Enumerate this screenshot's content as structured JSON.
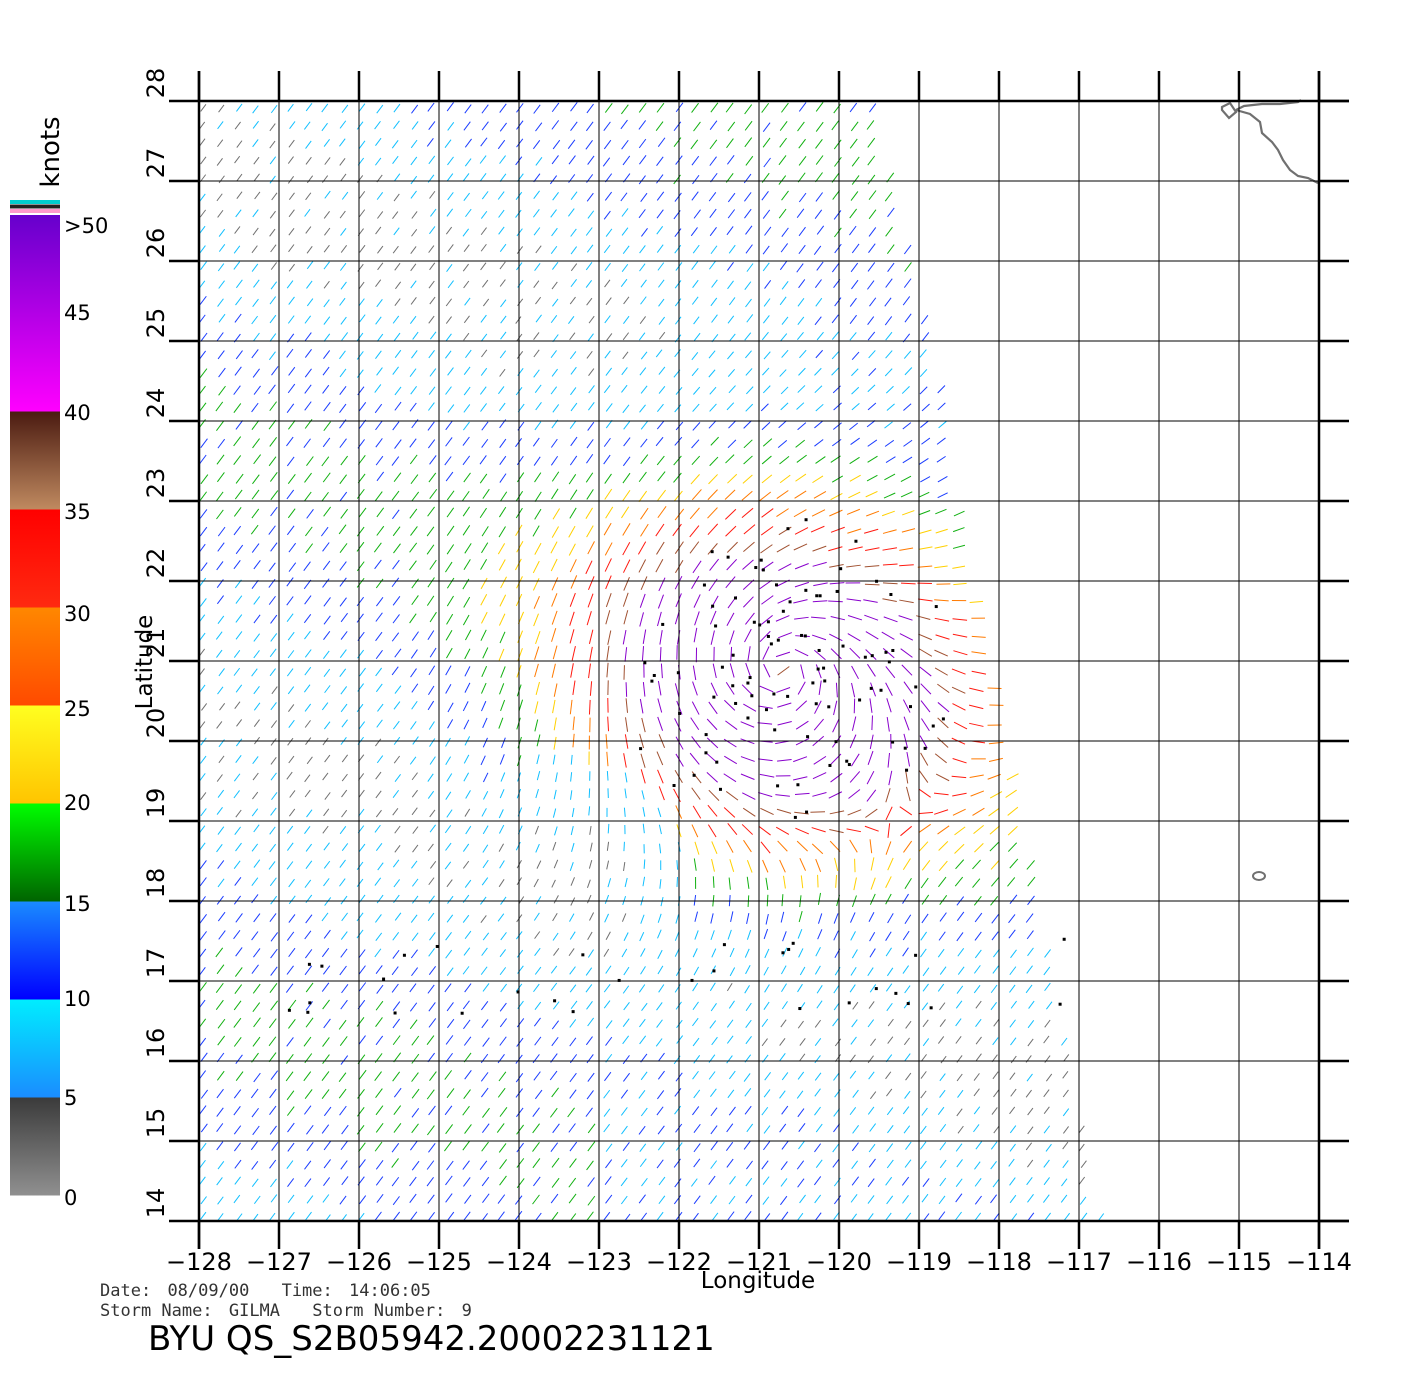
{
  "map": {
    "x_axis_label": "Longitude",
    "y_axis_label": "Latitude",
    "lon_range": [
      -128,
      -114
    ],
    "lat_range": [
      14,
      28
    ],
    "lon_ticks": [
      "−128",
      "−127",
      "−126",
      "−125",
      "−124",
      "−123",
      "−122",
      "−121",
      "−120",
      "−119",
      "−118",
      "−117",
      "−116",
      "−115",
      "−114"
    ],
    "lat_ticks": [
      "14",
      "15",
      "16",
      "17",
      "18",
      "19",
      "20",
      "21",
      "22",
      "23",
      "24",
      "25",
      "26",
      "27",
      "28"
    ],
    "storm_center_approx": {
      "lon": -120.7,
      "lat": 20.9
    },
    "calm_region_approx": {
      "lon": -123.5,
      "lat": 18.2
    },
    "swath_coverage_note_hidden": ""
  },
  "legend": {
    "unit": "knots",
    "labels": [
      ">50",
      "45",
      "40",
      "35",
      "30",
      "25",
      "20",
      "15",
      "10",
      "5",
      "0"
    ],
    "bands": [
      {
        "from": 0,
        "to": 5,
        "top_color": "#3a3a3a",
        "bottom_color": "#909090"
      },
      {
        "from": 5,
        "to": 10,
        "top_color": "#00eeff",
        "bottom_color": "#1a8cff"
      },
      {
        "from": 10,
        "to": 15,
        "top_color": "#1a8cff",
        "bottom_color": "#0000ff"
      },
      {
        "from": 15,
        "to": 20,
        "top_color": "#00ff00",
        "bottom_color": "#006400"
      },
      {
        "from": 20,
        "to": 25,
        "top_color": "#ffff20",
        "bottom_color": "#ffc400"
      },
      {
        "from": 25,
        "to": 30,
        "top_color": "#ff8800",
        "bottom_color": "#ff4a00"
      },
      {
        "from": 30,
        "to": 35,
        "top_color": "#ff0000",
        "bottom_color": "#ff2a10"
      },
      {
        "from": 35,
        "to": 40,
        "top_color": "#4a1a10",
        "bottom_color": "#c08a60"
      },
      {
        "from": 40,
        "to": 50,
        "top_color": "#6600cc",
        "bottom_color": "#ff00ff"
      }
    ],
    "top_stripes": [
      "#00cccc",
      "#202020",
      "#ff99cc"
    ]
  },
  "footer": {
    "date_label": "Date:",
    "date_value": "08/09/00",
    "time_label": "Time:",
    "time_value": "14:06:05",
    "storm_name_label": "Storm Name:",
    "storm_name_value": "GILMA",
    "storm_number_label": "Storm Number:",
    "storm_number_value": "9",
    "product_id": "BYU QS_S2B05942.20002231121"
  },
  "colors": {
    "grid": "#000000",
    "coastline": "#707070",
    "rain_flag": "#000000"
  }
}
